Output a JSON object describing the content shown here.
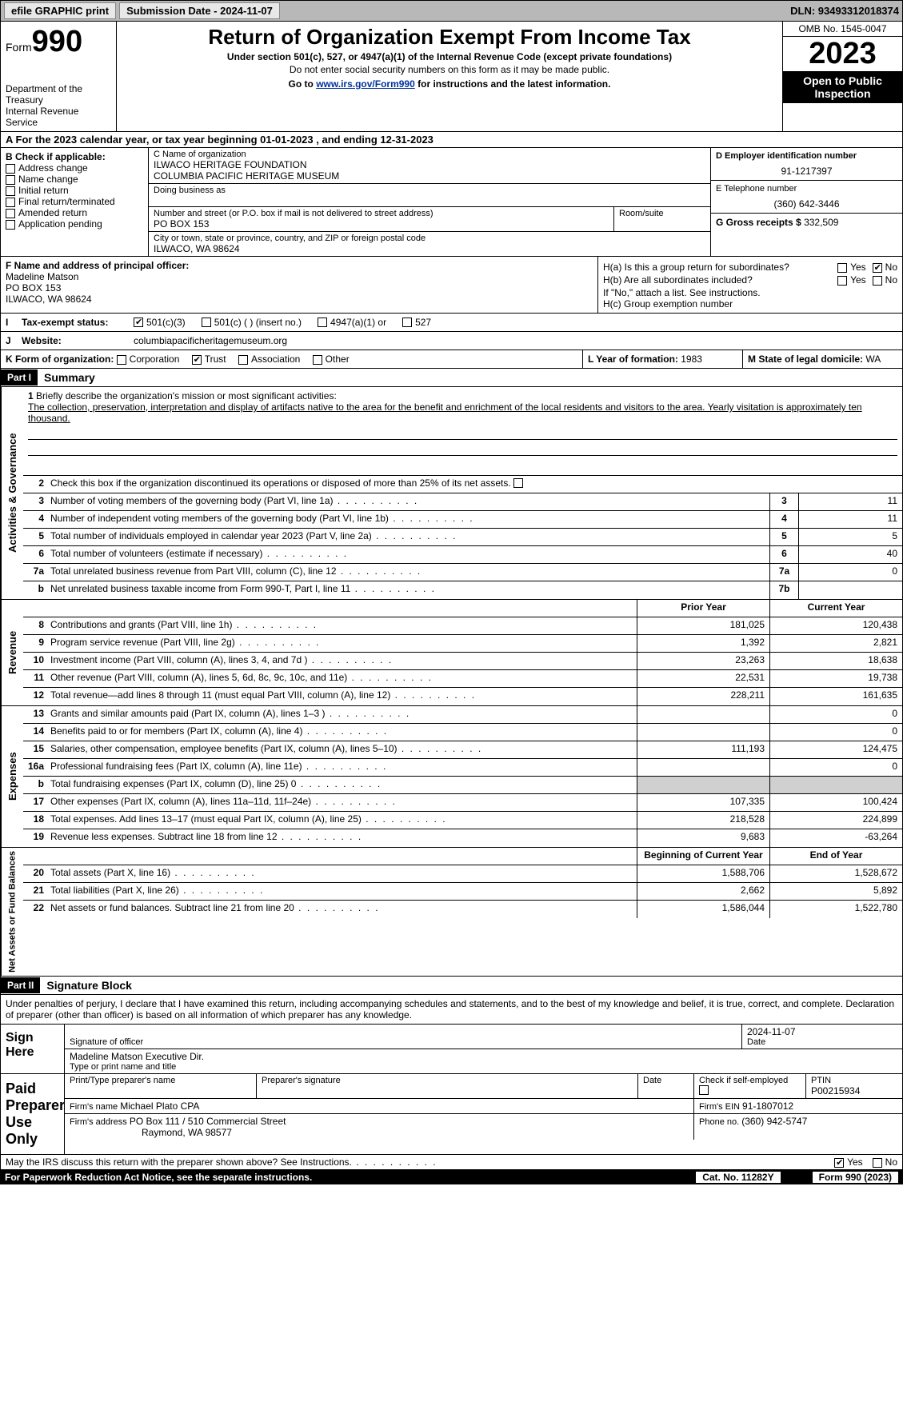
{
  "topbar": {
    "efile": "efile GRAPHIC print",
    "submission": "Submission Date - 2024-11-07",
    "dln": "DLN: 93493312018374"
  },
  "header": {
    "form_label": "Form",
    "form_number": "990",
    "dept": "Department of the Treasury",
    "irs": "Internal Revenue Service",
    "title": "Return of Organization Exempt From Income Tax",
    "subtitle": "Under section 501(c), 527, or 4947(a)(1) of the Internal Revenue Code (except private foundations)",
    "ssn_note": "Do not enter social security numbers on this form as it may be made public.",
    "goto_pre": "Go to ",
    "goto_link": "www.irs.gov/Form990",
    "goto_post": " for instructions and the latest information.",
    "omb": "OMB No. 1545-0047",
    "year": "2023",
    "open": "Open to Public Inspection"
  },
  "period": {
    "text": "A For the 2023 calendar year, or tax year beginning 01-01-2023    , and ending 12-31-2023"
  },
  "boxB": {
    "title": "B Check if applicable:",
    "opts": [
      "Address change",
      "Name change",
      "Initial return",
      "Final return/terminated",
      "Amended return",
      "Application pending"
    ]
  },
  "boxC": {
    "name_label": "C Name of organization",
    "name1": "ILWACO HERITAGE FOUNDATION",
    "name2": "COLUMBIA PACIFIC HERITAGE MUSEUM",
    "dba_label": "Doing business as",
    "street_label": "Number and street (or P.O. box if mail is not delivered to street address)",
    "street": "PO BOX 153",
    "room_label": "Room/suite",
    "city_label": "City or town, state or province, country, and ZIP or foreign postal code",
    "city": "ILWACO, WA  98624"
  },
  "boxD": {
    "ein_label": "D Employer identification number",
    "ein": "91-1217397",
    "phone_label": "E Telephone number",
    "phone": "(360) 642-3446",
    "gross_label": "G Gross receipts $ ",
    "gross": "332,509"
  },
  "boxF": {
    "label": "F  Name and address of principal officer:",
    "name": "Madeline Matson",
    "addr1": "PO BOX 153",
    "addr2": "ILWACO, WA  98624"
  },
  "boxH": {
    "ha": "H(a)  Is this a group return for subordinates?",
    "hb": "H(b)  Are all subordinates included?",
    "hb_note": "If \"No,\" attach a list. See instructions.",
    "hc": "H(c)  Group exemption number ",
    "yes": "Yes",
    "no": "No"
  },
  "rowI": {
    "label": "Tax-exempt status:",
    "opt1": "501(c)(3)",
    "opt2": "501(c) (  ) (insert no.)",
    "opt3": "4947(a)(1) or",
    "opt4": "527"
  },
  "rowJ": {
    "label": "Website: ",
    "value": "columbiapacificheritagemuseum.org"
  },
  "rowK": {
    "label": "K Form of organization:",
    "opts": [
      "Corporation",
      "Trust",
      "Association",
      "Other"
    ],
    "l_label": "L Year of formation: ",
    "l_val": "1983",
    "m_label": "M State of legal domicile: ",
    "m_val": "WA"
  },
  "part1": {
    "header": "Part I",
    "title": "Summary"
  },
  "mission": {
    "num": "1",
    "label": "Briefly describe the organization's mission or most significant activities:",
    "text": "The collection, preservation, interpretation and display of artifacts native to the area for the benefit and enrichment of the local residents and visitors to the area. Yearly visitation is approximately ten thousand."
  },
  "governance": {
    "label": "Activities & Governance",
    "line2": "Check this box      if the organization discontinued its operations or disposed of more than 25% of its net assets.",
    "rows": [
      {
        "n": "3",
        "t": "Number of voting members of the governing body (Part VI, line 1a)",
        "box": "3",
        "v": "11"
      },
      {
        "n": "4",
        "t": "Number of independent voting members of the governing body (Part VI, line 1b)",
        "box": "4",
        "v": "11"
      },
      {
        "n": "5",
        "t": "Total number of individuals employed in calendar year 2023 (Part V, line 2a)",
        "box": "5",
        "v": "5"
      },
      {
        "n": "6",
        "t": "Total number of volunteers (estimate if necessary)",
        "box": "6",
        "v": "40"
      },
      {
        "n": "7a",
        "t": "Total unrelated business revenue from Part VIII, column (C), line 12",
        "box": "7a",
        "v": "0"
      },
      {
        "n": "b",
        "t": "Net unrelated business taxable income from Form 990-T, Part I, line 11",
        "box": "7b",
        "v": ""
      }
    ]
  },
  "revenue": {
    "label": "Revenue",
    "h_prior": "Prior Year",
    "h_curr": "Current Year",
    "rows": [
      {
        "n": "8",
        "t": "Contributions and grants (Part VIII, line 1h)",
        "p": "181,025",
        "c": "120,438"
      },
      {
        "n": "9",
        "t": "Program service revenue (Part VIII, line 2g)",
        "p": "1,392",
        "c": "2,821"
      },
      {
        "n": "10",
        "t": "Investment income (Part VIII, column (A), lines 3, 4, and 7d )",
        "p": "23,263",
        "c": "18,638"
      },
      {
        "n": "11",
        "t": "Other revenue (Part VIII, column (A), lines 5, 6d, 8c, 9c, 10c, and 11e)",
        "p": "22,531",
        "c": "19,738"
      },
      {
        "n": "12",
        "t": "Total revenue—add lines 8 through 11 (must equal Part VIII, column (A), line 12)",
        "p": "228,211",
        "c": "161,635"
      }
    ]
  },
  "expenses": {
    "label": "Expenses",
    "rows": [
      {
        "n": "13",
        "t": "Grants and similar amounts paid (Part IX, column (A), lines 1–3 )",
        "p": "",
        "c": "0"
      },
      {
        "n": "14",
        "t": "Benefits paid to or for members (Part IX, column (A), line 4)",
        "p": "",
        "c": "0"
      },
      {
        "n": "15",
        "t": "Salaries, other compensation, employee benefits (Part IX, column (A), lines 5–10)",
        "p": "111,193",
        "c": "124,475"
      },
      {
        "n": "16a",
        "t": "Professional fundraising fees (Part IX, column (A), line 11e)",
        "p": "",
        "c": "0"
      },
      {
        "n": "b",
        "t": "Total fundraising expenses (Part IX, column (D), line 25) 0",
        "p": "gray",
        "c": "gray"
      },
      {
        "n": "17",
        "t": "Other expenses (Part IX, column (A), lines 11a–11d, 11f–24e)",
        "p": "107,335",
        "c": "100,424"
      },
      {
        "n": "18",
        "t": "Total expenses. Add lines 13–17 (must equal Part IX, column (A), line 25)",
        "p": "218,528",
        "c": "224,899"
      },
      {
        "n": "19",
        "t": "Revenue less expenses. Subtract line 18 from line 12",
        "p": "9,683",
        "c": "-63,264"
      }
    ]
  },
  "netassets": {
    "label": "Net Assets or Fund Balances",
    "h_prior": "Beginning of Current Year",
    "h_curr": "End of Year",
    "rows": [
      {
        "n": "20",
        "t": "Total assets (Part X, line 16)",
        "p": "1,588,706",
        "c": "1,528,672"
      },
      {
        "n": "21",
        "t": "Total liabilities (Part X, line 26)",
        "p": "2,662",
        "c": "5,892"
      },
      {
        "n": "22",
        "t": "Net assets or fund balances. Subtract line 21 from line 20",
        "p": "1,586,044",
        "c": "1,522,780"
      }
    ]
  },
  "part2": {
    "header": "Part II",
    "title": "Signature Block",
    "declare": "Under penalties of perjury, I declare that I have examined this return, including accompanying schedules and statements, and to the best of my knowledge and belief, it is true, correct, and complete. Declaration of preparer (other than officer) is based on all information of which preparer has any knowledge."
  },
  "sign": {
    "here": "Sign Here",
    "sig_label": "Signature of officer",
    "date": "2024-11-07",
    "date_label": "Date",
    "name": "Madeline Matson Executive Dir.",
    "name_label": "Type or print name and title"
  },
  "paid": {
    "label": "Paid Preparer Use Only",
    "print_label": "Print/Type preparer's name",
    "sig_label": "Preparer's signature",
    "date_label": "Date",
    "check_label": "Check        if self-employed",
    "ptin_label": "PTIN",
    "ptin": "P00215934",
    "firm_name_label": "Firm's name      ",
    "firm_name": "Michael Plato CPA",
    "firm_ein_label": "Firm's EIN  ",
    "firm_ein": "91-1807012",
    "firm_addr_label": "Firm's address ",
    "firm_addr1": "PO Box 111 / 510 Commercial Street",
    "firm_addr2": "Raymond, WA  98577",
    "phone_label": "Phone no. ",
    "phone": "(360) 942-5747"
  },
  "footer": {
    "discuss": "May the IRS discuss this return with the preparer shown above? See Instructions.",
    "yes": "Yes",
    "no": "No",
    "paperwork": "For Paperwork Reduction Act Notice, see the separate instructions.",
    "cat": "Cat. No. 11282Y",
    "form": "Form 990 (2023)"
  }
}
